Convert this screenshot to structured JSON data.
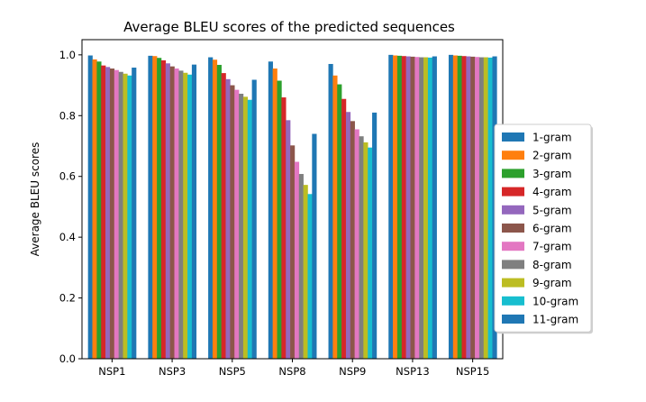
{
  "chart_data": {
    "type": "bar",
    "title": "Average BLEU scores of the predicted sequences",
    "xlabel": "",
    "ylabel": "Average BLEU scores",
    "ylim": [
      0.0,
      1.05
    ],
    "yticks": [
      "0.0",
      "0.2",
      "0.4",
      "0.6",
      "0.8",
      "1.0"
    ],
    "grid": false,
    "legend_position": "right, outside plot",
    "categories": [
      "NSP1",
      "NSP3",
      "NSP5",
      "NSP8",
      "NSP9",
      "NSP13",
      "NSP15"
    ],
    "series": [
      {
        "name": "1-gram",
        "color": "#1f77b4",
        "values": [
          0.998,
          0.997,
          0.992,
          0.978,
          0.97,
          1.0,
          1.0
        ]
      },
      {
        "name": "2-gram",
        "color": "#ff7f0e",
        "values": [
          0.985,
          0.996,
          0.984,
          0.955,
          0.932,
          0.998,
          0.998
        ]
      },
      {
        "name": "3-gram",
        "color": "#2ca02c",
        "values": [
          0.978,
          0.99,
          0.967,
          0.915,
          0.903,
          0.997,
          0.997
        ]
      },
      {
        "name": "4-gram",
        "color": "#d62728",
        "values": [
          0.965,
          0.982,
          0.94,
          0.86,
          0.855,
          0.996,
          0.996
        ]
      },
      {
        "name": "5-gram",
        "color": "#9467bd",
        "values": [
          0.96,
          0.972,
          0.92,
          0.785,
          0.812,
          0.995,
          0.995
        ]
      },
      {
        "name": "6-gram",
        "color": "#8c564b",
        "values": [
          0.955,
          0.962,
          0.9,
          0.702,
          0.782,
          0.994,
          0.994
        ]
      },
      {
        "name": "7-gram",
        "color": "#e377c2",
        "values": [
          0.95,
          0.955,
          0.885,
          0.648,
          0.755,
          0.993,
          0.993
        ]
      },
      {
        "name": "8-gram",
        "color": "#7f7f7f",
        "values": [
          0.944,
          0.948,
          0.872,
          0.608,
          0.732,
          0.992,
          0.992
        ]
      },
      {
        "name": "9-gram",
        "color": "#bcbd22",
        "values": [
          0.938,
          0.941,
          0.862,
          0.572,
          0.712,
          0.992,
          0.992
        ]
      },
      {
        "name": "10-gram",
        "color": "#17becf",
        "values": [
          0.932,
          0.935,
          0.852,
          0.542,
          0.695,
          0.991,
          0.991
        ]
      },
      {
        "name": "11-gram",
        "color": "#1f77b4",
        "values": [
          0.958,
          0.968,
          0.918,
          0.74,
          0.81,
          0.995,
          0.995
        ]
      }
    ]
  }
}
